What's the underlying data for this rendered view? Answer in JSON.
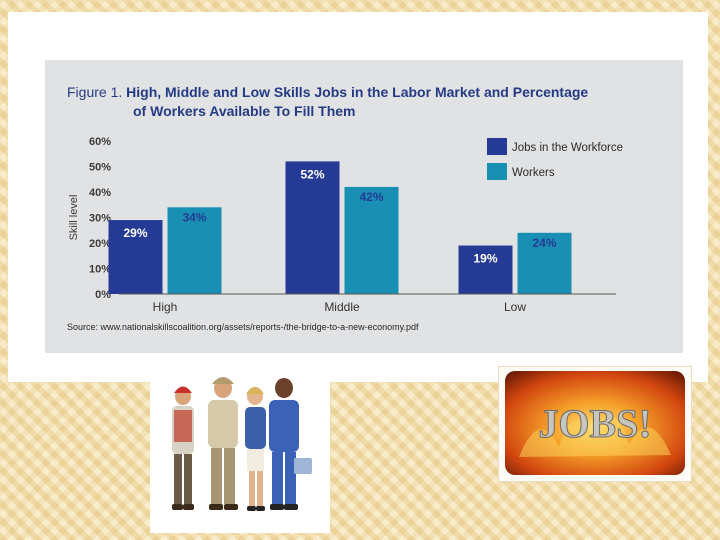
{
  "figure": {
    "number": "Figure 1.",
    "title_line1": "High, Middle and Low Skills Jobs in the Labor Market and Percentage",
    "title_line2": "of Workers Available To Fill Them",
    "source": "Source: www.nationalskillscoalition.org/assets/reports-/the-bridge-to-a-new-economy.pdf"
  },
  "chart_data": {
    "type": "bar",
    "categories": [
      "High",
      "Middle",
      "Low"
    ],
    "series": [
      {
        "name": "Jobs in the Workforce",
        "values": [
          29,
          52,
          19
        ],
        "labels": [
          "29%",
          "52%",
          "19%"
        ],
        "color": "#253a95"
      },
      {
        "name": "Workers",
        "values": [
          34,
          42,
          24
        ],
        "labels": [
          "34%",
          "42%",
          "24%"
        ],
        "color": "#1a8fb4"
      }
    ],
    "ylabel": "Skill level",
    "yticks": [
      "0%",
      "10%",
      "20%",
      "30%",
      "40%",
      "50%",
      "60%"
    ],
    "ylim": [
      0,
      60
    ],
    "grid": false,
    "legend": "top-right"
  },
  "images": {
    "workers_photo": "group of workers in uniforms",
    "jobs_banner_text": "JOBS!"
  },
  "colors": {
    "title": "#243b84",
    "jobs_bar": "#253a95",
    "workers_bar": "#1a8fb4",
    "figure_bg": "#e1e2e4"
  }
}
